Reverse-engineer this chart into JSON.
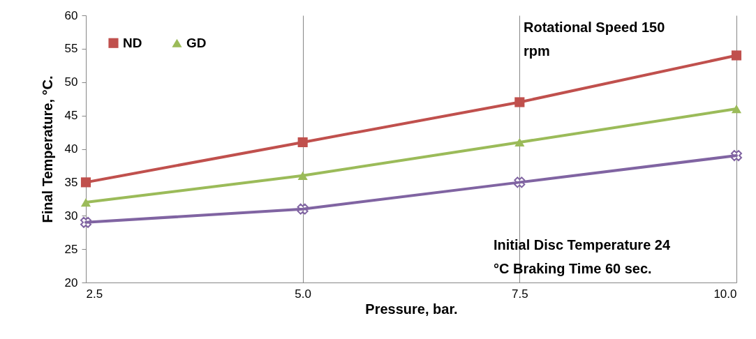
{
  "chart_data": {
    "type": "line",
    "xlabel": "Pressure, bar.",
    "ylabel": "Final Temperature, °C.",
    "x": [
      2.5,
      5,
      7.5,
      10
    ],
    "series": [
      {
        "name": "ND",
        "color": "#c0504d",
        "marker": "square",
        "values": [
          35,
          41,
          47,
          54
        ]
      },
      {
        "name": "GD",
        "color": "#9bbb59",
        "marker": "triangle",
        "values": [
          32,
          36,
          41,
          46
        ]
      },
      {
        "color": "#8064a2",
        "marker": "cross",
        "values": [
          29,
          31,
          35,
          39
        ]
      }
    ],
    "xlim": [
      2.5,
      10
    ],
    "xticks": [
      {
        "value": 2.5,
        "label": "2.5"
      },
      {
        "value": 5,
        "label": "5.0"
      },
      {
        "value": 7.5,
        "label": "7.5"
      },
      {
        "value": 10,
        "label": "10.0"
      }
    ],
    "ylim": [
      20,
      60
    ],
    "yticks": [
      20,
      25,
      30,
      35,
      40,
      45,
      50,
      55,
      60
    ],
    "grid": "x",
    "legend": "top left",
    "line_style": "solid",
    "annotations": [
      "Rotational Speed 150 rpm",
      "Initial Disc Temperature 24 °C  Braking Time 60 sec."
    ]
  }
}
